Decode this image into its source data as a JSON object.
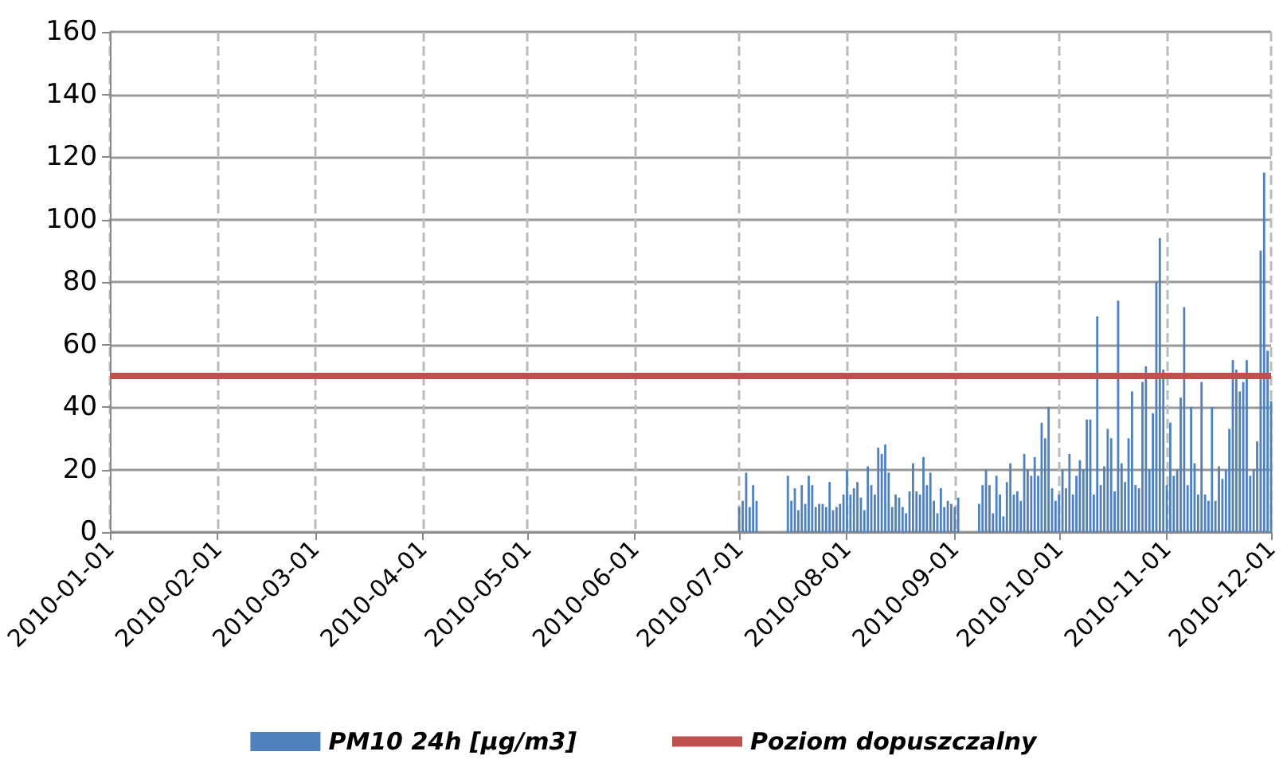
{
  "chart_data": {
    "type": "bar",
    "x": [
      "2010-07-01",
      "2010-07-02",
      "2010-07-03",
      "2010-07-04",
      "2010-07-05",
      "2010-07-06",
      "2010-07-07",
      "2010-07-08",
      "2010-07-09",
      "2010-07-10",
      "2010-07-11",
      "2010-07-12",
      "2010-07-13",
      "2010-07-14",
      "2010-07-15",
      "2010-07-16",
      "2010-07-17",
      "2010-07-18",
      "2010-07-19",
      "2010-07-20",
      "2010-07-21",
      "2010-07-22",
      "2010-07-23",
      "2010-07-24",
      "2010-07-25",
      "2010-07-26",
      "2010-07-27",
      "2010-07-28",
      "2010-07-29",
      "2010-07-30",
      "2010-07-31",
      "2010-08-01",
      "2010-08-02",
      "2010-08-03",
      "2010-08-04",
      "2010-08-05",
      "2010-08-06",
      "2010-08-07",
      "2010-08-08",
      "2010-08-09",
      "2010-08-10",
      "2010-08-11",
      "2010-08-12",
      "2010-08-13",
      "2010-08-14",
      "2010-08-15",
      "2010-08-16",
      "2010-08-17",
      "2010-08-18",
      "2010-08-19",
      "2010-08-20",
      "2010-08-21",
      "2010-08-22",
      "2010-08-23",
      "2010-08-24",
      "2010-08-25",
      "2010-08-26",
      "2010-08-27",
      "2010-08-28",
      "2010-08-29",
      "2010-08-30",
      "2010-08-31",
      "2010-09-01",
      "2010-09-02",
      "2010-09-03",
      "2010-09-04",
      "2010-09-05",
      "2010-09-06",
      "2010-09-07",
      "2010-09-08",
      "2010-09-09",
      "2010-09-10",
      "2010-09-11",
      "2010-09-12",
      "2010-09-13",
      "2010-09-14",
      "2010-09-15",
      "2010-09-16",
      "2010-09-17",
      "2010-09-18",
      "2010-09-19",
      "2010-09-20",
      "2010-09-21",
      "2010-09-22",
      "2010-09-23",
      "2010-09-24",
      "2010-09-25",
      "2010-09-26",
      "2010-09-27",
      "2010-09-28",
      "2010-09-29",
      "2010-09-30",
      "2010-10-01",
      "2010-10-02",
      "2010-10-03",
      "2010-10-04",
      "2010-10-05",
      "2010-10-06",
      "2010-10-07",
      "2010-10-08",
      "2010-10-09",
      "2010-10-10",
      "2010-10-11",
      "2010-10-12",
      "2010-10-13",
      "2010-10-14",
      "2010-10-15",
      "2010-10-16",
      "2010-10-17",
      "2010-10-18",
      "2010-10-19",
      "2010-10-20",
      "2010-10-21",
      "2010-10-22",
      "2010-10-23",
      "2010-10-24",
      "2010-10-25",
      "2010-10-26",
      "2010-10-27",
      "2010-10-28",
      "2010-10-29",
      "2010-10-30",
      "2010-10-31",
      "2010-11-01",
      "2010-11-02",
      "2010-11-03",
      "2010-11-04",
      "2010-11-05",
      "2010-11-06",
      "2010-11-07",
      "2010-11-08",
      "2010-11-09",
      "2010-11-10",
      "2010-11-11",
      "2010-11-12",
      "2010-11-13",
      "2010-11-14",
      "2010-11-15",
      "2010-11-16",
      "2010-11-17",
      "2010-11-18",
      "2010-11-19",
      "2010-11-20",
      "2010-11-21",
      "2010-11-22",
      "2010-11-23",
      "2010-11-24",
      "2010-11-25",
      "2010-11-26",
      "2010-11-27",
      "2010-11-28",
      "2010-11-29",
      "2010-11-30",
      "2010-12-01"
    ],
    "series": [
      {
        "name": "PM10 24h [µg/m3]",
        "color": "#4f81bd",
        "values": [
          8,
          10,
          19,
          8,
          15,
          10,
          null,
          null,
          null,
          null,
          null,
          null,
          null,
          null,
          18,
          10,
          14,
          7,
          15,
          9,
          18,
          15,
          8,
          9,
          9,
          8,
          16,
          7,
          8,
          9,
          12,
          20,
          12,
          14,
          16,
          11,
          7,
          21,
          15,
          12,
          27,
          25,
          28,
          19,
          8,
          12,
          11,
          8,
          6,
          13,
          22,
          13,
          12,
          24,
          15,
          19,
          10,
          6,
          14,
          8,
          10,
          9,
          8,
          11,
          null,
          null,
          null,
          null,
          null,
          9,
          15,
          20,
          15,
          6,
          18,
          12,
          5,
          16,
          22,
          12,
          13,
          10,
          25,
          20,
          18,
          24,
          18,
          35,
          30,
          40,
          14,
          10,
          12,
          20,
          14,
          25,
          12,
          18,
          23,
          20,
          36,
          36,
          12,
          69,
          15,
          21,
          33,
          30,
          13,
          74,
          22,
          16,
          30,
          45,
          15,
          14,
          48,
          53,
          20,
          38,
          80,
          94,
          52,
          15,
          35,
          18,
          20,
          43,
          72,
          15,
          40,
          22,
          12,
          48,
          12,
          10,
          40,
          10,
          21,
          17,
          20,
          33,
          55,
          52,
          45,
          48,
          55,
          18,
          20,
          29,
          90,
          115,
          58,
          42
        ]
      }
    ],
    "xlim": [
      "2010-01-01",
      "2010-12-01"
    ],
    "xticks": [
      "2010-01-01",
      "2010-02-01",
      "2010-03-01",
      "2010-04-01",
      "2010-05-01",
      "2010-06-01",
      "2010-07-01",
      "2010-08-01",
      "2010-09-01",
      "2010-10-01",
      "2010-11-01",
      "2010-12-01"
    ],
    "ylim": [
      0,
      160
    ],
    "yticks": [
      0,
      20,
      40,
      60,
      80,
      100,
      120,
      140,
      160
    ],
    "ref_lines": [
      {
        "axis": "y",
        "value": 50,
        "label": "Poziom dopuszczalny",
        "color": "#c0504d"
      }
    ],
    "grid": true,
    "legend": "bottom"
  }
}
